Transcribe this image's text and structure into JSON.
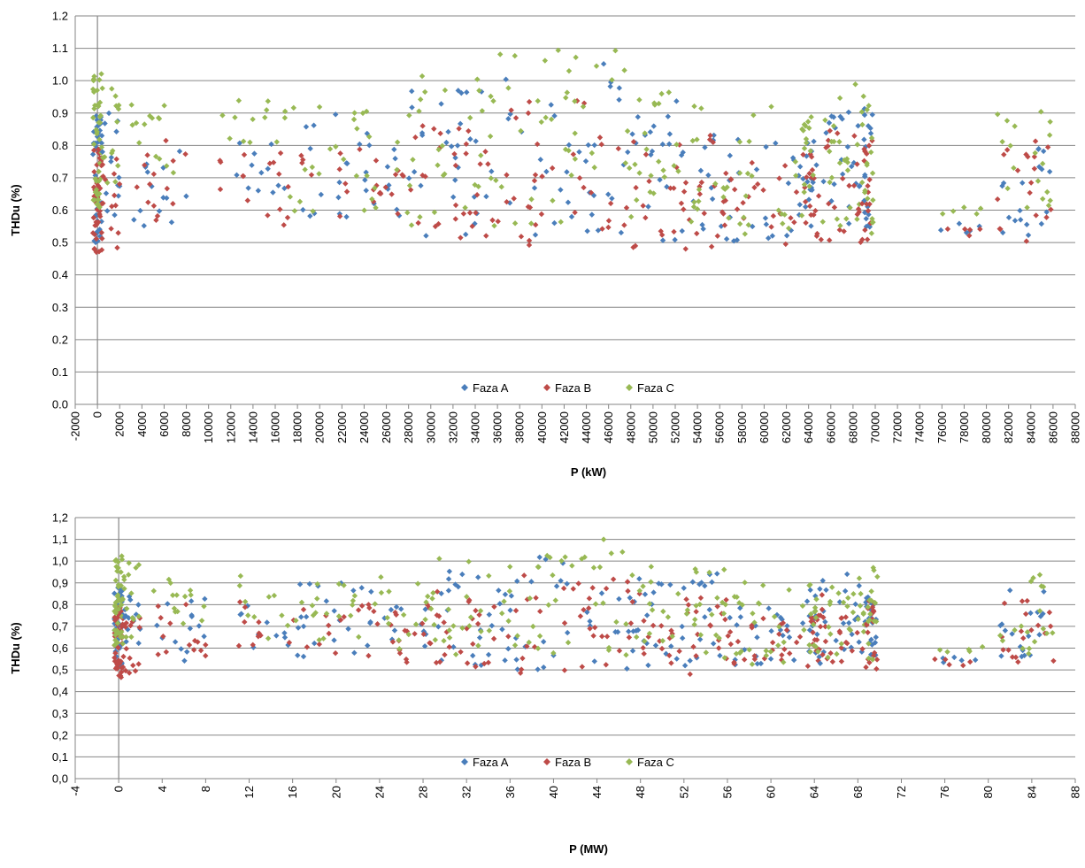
{
  "chart_data": [
    {
      "type": "scatter",
      "title": "",
      "xlabel": "P (kW)",
      "ylabel": "THDu  (%)",
      "xlim": [
        -2000,
        88000
      ],
      "ylim": [
        0.0,
        1.2
      ],
      "x_tick_labels": [
        "-2000",
        "0",
        "2000",
        "4000",
        "6000",
        "8000",
        "10000",
        "12000",
        "14000",
        "16000",
        "18000",
        "20000",
        "22000",
        "24000",
        "26000",
        "28000",
        "30000",
        "32000",
        "34000",
        "36000",
        "38000",
        "40000",
        "42000",
        "44000",
        "46000",
        "48000",
        "50000",
        "52000",
        "54000",
        "56000",
        "58000",
        "60000",
        "62000",
        "64000",
        "66000",
        "68000",
        "70000",
        "72000",
        "74000",
        "76000",
        "78000",
        "80000",
        "82000",
        "84000",
        "86000",
        "88000"
      ],
      "y_tick_labels": [
        "0.0",
        "0.1",
        "0.2",
        "0.3",
        "0.4",
        "0.5",
        "0.6",
        "0.7",
        "0.8",
        "0.9",
        "1.0",
        "1.1",
        "1.2"
      ],
      "grid": true,
      "legend_position": "bottom-center",
      "marker": "diamond",
      "series": [
        {
          "name": "Faza A",
          "color": "#4a7ebb"
        },
        {
          "name": "Faza B",
          "color": "#be4b48"
        },
        {
          "name": "Faza C",
          "color": "#98b954"
        }
      ],
      "clusters": [
        {
          "x": [
            -400,
            400
          ],
          "ranges": [
            [
              0.5,
              0.9
            ],
            [
              0.47,
              0.8
            ],
            [
              0.6,
              1.03
            ]
          ],
          "n": 45
        },
        {
          "x": [
            400,
            2000
          ],
          "ranges": [
            [
              0.55,
              0.9
            ],
            [
              0.48,
              0.78
            ],
            [
              0.65,
              1.02
            ]
          ],
          "n": 14
        },
        {
          "x": [
            3000,
            8000
          ],
          "ranges": [
            [
              0.53,
              0.83
            ],
            [
              0.55,
              0.82
            ],
            [
              0.7,
              0.93
            ]
          ],
          "n": 14
        },
        {
          "x": [
            11000,
            16000
          ],
          "ranges": [
            [
              0.58,
              0.83
            ],
            [
              0.58,
              0.82
            ],
            [
              0.63,
              0.94
            ]
          ],
          "n": 10
        },
        {
          "x": [
            16000,
            28000
          ],
          "ranges": [
            [
              0.55,
              0.9
            ],
            [
              0.53,
              0.8
            ],
            [
              0.58,
              0.93
            ]
          ],
          "n": 30
        },
        {
          "x": [
            28000,
            36000
          ],
          "ranges": [
            [
              0.52,
              0.97
            ],
            [
              0.5,
              0.87
            ],
            [
              0.55,
              1.02
            ]
          ],
          "n": 30
        },
        {
          "x": [
            36000,
            48000
          ],
          "ranges": [
            [
              0.5,
              1.06
            ],
            [
              0.48,
              0.95
            ],
            [
              0.55,
              1.1
            ]
          ],
          "n": 36
        },
        {
          "x": [
            48000,
            56000
          ],
          "ranges": [
            [
              0.5,
              0.96
            ],
            [
              0.48,
              0.84
            ],
            [
              0.55,
              0.99
            ]
          ],
          "n": 32
        },
        {
          "x": [
            56000,
            63500
          ],
          "ranges": [
            [
              0.5,
              0.83
            ],
            [
              0.49,
              0.75
            ],
            [
              0.52,
              0.92
            ]
          ],
          "n": 26
        },
        {
          "x": [
            63500,
            64500
          ],
          "ranges": [
            [
              0.55,
              0.88
            ],
            [
              0.53,
              0.78
            ],
            [
              0.58,
              0.9
            ]
          ],
          "n": 14
        },
        {
          "x": [
            64500,
            68800
          ],
          "ranges": [
            [
              0.52,
              0.95
            ],
            [
              0.5,
              0.85
            ],
            [
              0.55,
              0.99
            ]
          ],
          "n": 24
        },
        {
          "x": [
            68800,
            69800
          ],
          "ranges": [
            [
              0.52,
              0.93
            ],
            [
              0.5,
              0.85
            ],
            [
              0.52,
              0.97
            ]
          ],
          "n": 18
        },
        {
          "x": [
            75000,
            79500
          ],
          "ranges": [
            [
              0.53,
              0.56
            ],
            [
              0.52,
              0.55
            ],
            [
              0.58,
              0.61
            ]
          ],
          "n": 5
        },
        {
          "x": [
            81000,
            86000
          ],
          "ranges": [
            [
              0.52,
              0.88
            ],
            [
              0.5,
              0.82
            ],
            [
              0.55,
              0.95
            ]
          ],
          "n": 18
        }
      ]
    },
    {
      "type": "scatter",
      "title": "",
      "xlabel": "P (MW)",
      "ylabel": "THDu  (%)",
      "xlim": [
        -4,
        88
      ],
      "ylim": [
        0.0,
        1.2
      ],
      "x_tick_labels": [
        "-4",
        "0",
        "4",
        "8",
        "12",
        "16",
        "20",
        "24",
        "28",
        "32",
        "36",
        "40",
        "44",
        "48",
        "52",
        "56",
        "60",
        "64",
        "68",
        "72",
        "76",
        "80",
        "84",
        "88"
      ],
      "y_tick_labels": [
        "0,0",
        "0,1",
        "0,2",
        "0,3",
        "0,4",
        "0,5",
        "0,6",
        "0,7",
        "0,8",
        "0,9",
        "1,0",
        "1,1",
        "1,2"
      ],
      "grid": true,
      "legend_position": "bottom-center",
      "marker": "diamond",
      "series": [
        {
          "name": "Faza A",
          "color": "#4a7ebb"
        },
        {
          "name": "Faza B",
          "color": "#be4b48"
        },
        {
          "name": "Faza C",
          "color": "#98b954"
        }
      ],
      "clusters": [
        {
          "x": [
            -0.4,
            0.4
          ],
          "ranges": [
            [
              0.5,
              0.9
            ],
            [
              0.46,
              0.8
            ],
            [
              0.6,
              1.03
            ]
          ],
          "n": 45
        },
        {
          "x": [
            0.4,
            2.0
          ],
          "ranges": [
            [
              0.55,
              0.9
            ],
            [
              0.48,
              0.78
            ],
            [
              0.65,
              1.02
            ]
          ],
          "n": 14
        },
        {
          "x": [
            3.0,
            8.0
          ],
          "ranges": [
            [
              0.53,
              0.83
            ],
            [
              0.55,
              0.82
            ],
            [
              0.7,
              0.93
            ]
          ],
          "n": 14
        },
        {
          "x": [
            11.0,
            16.0
          ],
          "ranges": [
            [
              0.58,
              0.83
            ],
            [
              0.58,
              0.82
            ],
            [
              0.63,
              0.94
            ]
          ],
          "n": 10
        },
        {
          "x": [
            16.0,
            28.0
          ],
          "ranges": [
            [
              0.55,
              0.9
            ],
            [
              0.53,
              0.8
            ],
            [
              0.58,
              0.93
            ]
          ],
          "n": 30
        },
        {
          "x": [
            28.0,
            36.0
          ],
          "ranges": [
            [
              0.52,
              0.97
            ],
            [
              0.5,
              0.87
            ],
            [
              0.55,
              1.02
            ]
          ],
          "n": 30
        },
        {
          "x": [
            36.0,
            48.0
          ],
          "ranges": [
            [
              0.5,
              1.06
            ],
            [
              0.48,
              0.95
            ],
            [
              0.55,
              1.1
            ]
          ],
          "n": 36
        },
        {
          "x": [
            48.0,
            56.0
          ],
          "ranges": [
            [
              0.5,
              0.96
            ],
            [
              0.48,
              0.84
            ],
            [
              0.55,
              0.99
            ]
          ],
          "n": 32
        },
        {
          "x": [
            56.0,
            63.5
          ],
          "ranges": [
            [
              0.5,
              0.83
            ],
            [
              0.49,
              0.75
            ],
            [
              0.52,
              0.92
            ]
          ],
          "n": 26
        },
        {
          "x": [
            63.5,
            64.5
          ],
          "ranges": [
            [
              0.55,
              0.88
            ],
            [
              0.53,
              0.78
            ],
            [
              0.58,
              0.9
            ]
          ],
          "n": 14
        },
        {
          "x": [
            64.5,
            68.8
          ],
          "ranges": [
            [
              0.52,
              0.95
            ],
            [
              0.5,
              0.85
            ],
            [
              0.55,
              0.99
            ]
          ],
          "n": 24
        },
        {
          "x": [
            68.8,
            69.8
          ],
          "ranges": [
            [
              0.52,
              0.93
            ],
            [
              0.5,
              0.85
            ],
            [
              0.52,
              0.97
            ]
          ],
          "n": 18
        },
        {
          "x": [
            75.0,
            79.5
          ],
          "ranges": [
            [
              0.53,
              0.56
            ],
            [
              0.52,
              0.55
            ],
            [
              0.58,
              0.61
            ]
          ],
          "n": 5
        },
        {
          "x": [
            81.0,
            86.0
          ],
          "ranges": [
            [
              0.52,
              0.88
            ],
            [
              0.5,
              0.82
            ],
            [
              0.55,
              0.95
            ]
          ],
          "n": 18
        }
      ]
    }
  ]
}
